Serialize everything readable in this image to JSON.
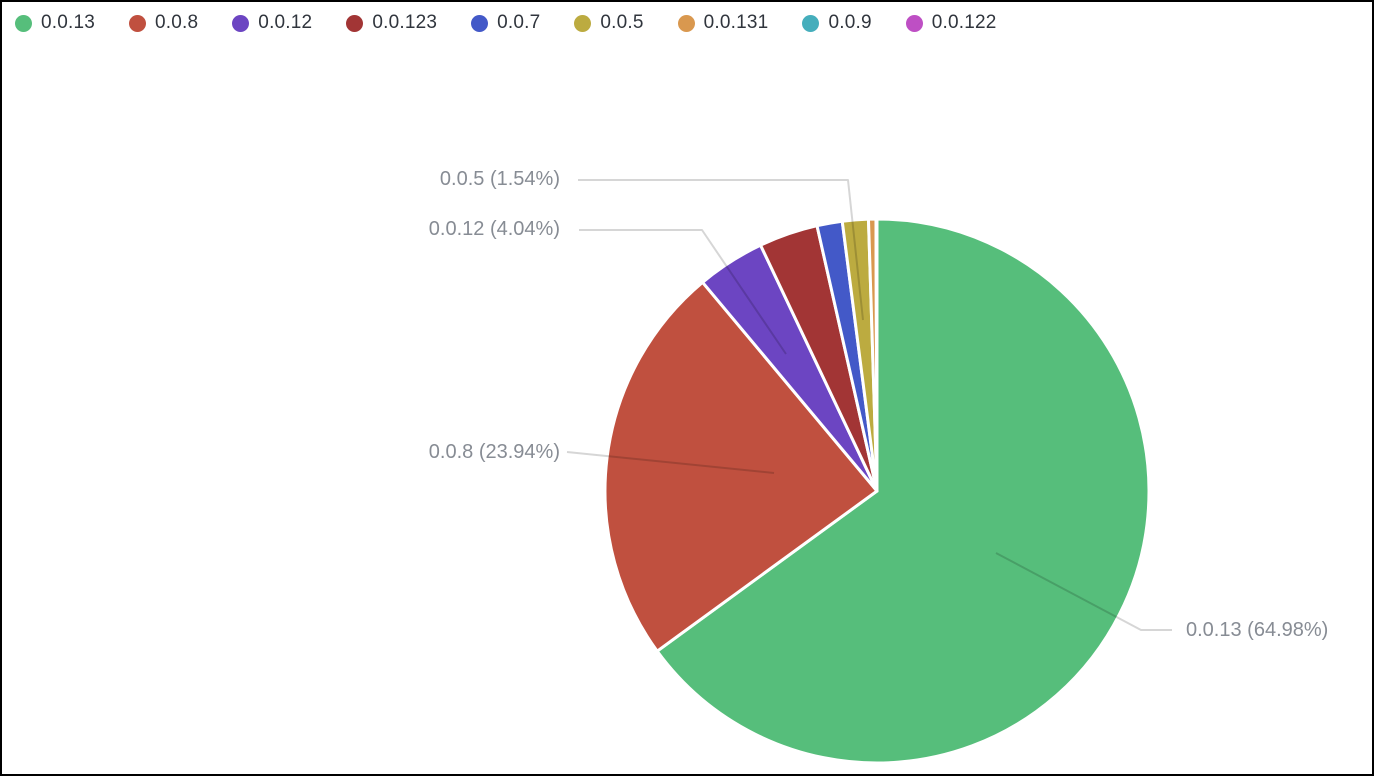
{
  "chart_data": {
    "type": "pie",
    "title": "",
    "legend_position": "top",
    "label_format": "name (percent%)",
    "slices": [
      {
        "name": "0.0.13",
        "percent": 64.98,
        "color": "#56be7b",
        "labeled": true
      },
      {
        "name": "0.0.8",
        "percent": 23.94,
        "color": "#c0503f",
        "labeled": true
      },
      {
        "name": "0.0.12",
        "percent": 4.04,
        "color": "#6c45c2",
        "labeled": true
      },
      {
        "name": "0.0.123",
        "percent": 3.5,
        "color": "#a23535",
        "labeled": false
      },
      {
        "name": "0.0.7",
        "percent": 1.5,
        "color": "#4359c8",
        "labeled": false
      },
      {
        "name": "0.0.5",
        "percent": 1.54,
        "color": "#bcab40",
        "labeled": true
      },
      {
        "name": "0.0.131",
        "percent": 0.44,
        "color": "#d9984f",
        "labeled": false
      },
      {
        "name": "0.0.9",
        "percent": 0.04,
        "color": "#45aebc",
        "labeled": false
      },
      {
        "name": "0.0.122",
        "percent": 0.02,
        "color": "#be4fc4",
        "labeled": false
      }
    ]
  },
  "legend": {
    "items": [
      "0.0.13",
      "0.0.8",
      "0.0.12",
      "0.0.123",
      "0.0.7",
      "0.0.5",
      "0.0.131",
      "0.0.9",
      "0.0.122"
    ]
  },
  "callouts": [
    {
      "text": "0.0.5 (1.54%)"
    },
    {
      "text": "0.0.12 (4.04%)"
    },
    {
      "text": "0.0.8 (23.94%)"
    },
    {
      "text": "0.0.13 (64.98%)"
    }
  ],
  "colors": {
    "background": "#ffffff",
    "border": "#000000",
    "legend_text": "#30353d",
    "callout_text": "#878c94",
    "leader_line": "rgba(0,0,0,0.16)",
    "slice_separator": "#ffffff"
  }
}
